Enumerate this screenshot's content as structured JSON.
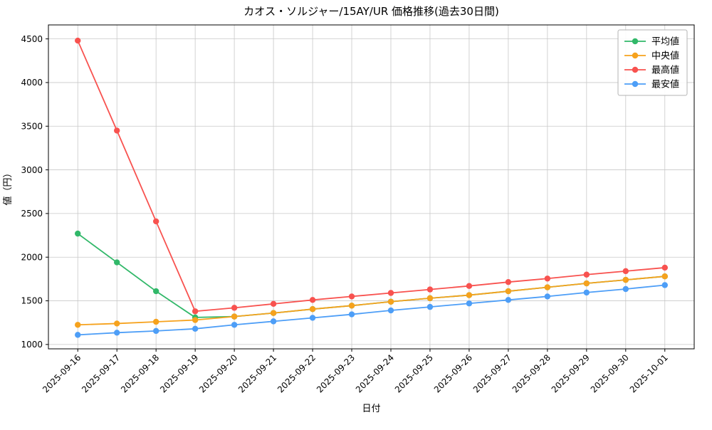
{
  "chart_data": {
    "type": "line",
    "title": "カオス・ソルジャー/15AY/UR 価格推移(過去30日間)",
    "xlabel": "日付",
    "ylabel": "値（円）",
    "grid": true,
    "legend_position": "upper right",
    "background": "#ffffff",
    "grid_color": "#c8c8c8",
    "axis_color": "#000000",
    "ylim": [
      950,
      4660
    ],
    "yticks": [
      1000,
      1500,
      2000,
      2500,
      3000,
      3500,
      4000,
      4500
    ],
    "categories": [
      "2025-09-16",
      "2025-09-17",
      "2025-09-18",
      "2025-09-19",
      "2025-09-20",
      "2025-09-21",
      "2025-09-22",
      "2025-09-23",
      "2025-09-24",
      "2025-09-25",
      "2025-09-26",
      "2025-09-27",
      "2025-09-28",
      "2025-09-29",
      "2025-09-30",
      "2025-10-01"
    ],
    "series": [
      {
        "key": "average",
        "name": "平均値",
        "color": "#31b869",
        "values": [
          2270,
          1940,
          1610,
          1310,
          1320,
          1360,
          1405,
          1445,
          1490,
          1530,
          1565,
          1610,
          1655,
          1700,
          1740,
          1780
        ]
      },
      {
        "key": "median",
        "name": "中央値",
        "color": "#f6a21d",
        "values": [
          1225,
          1240,
          1260,
          1280,
          1320,
          1360,
          1405,
          1445,
          1490,
          1530,
          1565,
          1610,
          1655,
          1700,
          1740,
          1780
        ]
      },
      {
        "key": "max",
        "name": "最高値",
        "color": "#f8524f",
        "values": [
          4480,
          3450,
          2410,
          1380,
          1420,
          1465,
          1510,
          1550,
          1590,
          1630,
          1670,
          1715,
          1755,
          1800,
          1840,
          1880
        ]
      },
      {
        "key": "min",
        "name": "最安値",
        "color": "#4d9ef7",
        "values": [
          1110,
          1135,
          1155,
          1180,
          1225,
          1265,
          1305,
          1345,
          1390,
          1430,
          1470,
          1510,
          1550,
          1595,
          1635,
          1680
        ]
      }
    ]
  }
}
